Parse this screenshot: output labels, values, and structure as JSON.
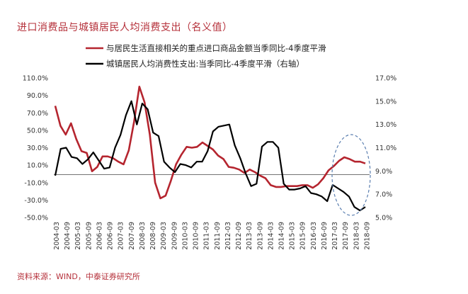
{
  "title": "进口消费品与城镇居民人均消费支出（名义值）",
  "source": "资料来源：WIND，中泰证券研究所",
  "colors": {
    "series1": "#b5252f",
    "series2": "#000000",
    "ellipse": "#5b7fb0",
    "title": "#b5303a"
  },
  "chart_data": {
    "type": "line",
    "legend": [
      "与居民生活直接相关的重点进口商品金额当季同比-4季度平滑",
      "城镇居民人均消费性支出:当季同比-4季度平滑（右轴）"
    ],
    "left_axis": {
      "ticks": [
        "110.0%",
        "90.0%",
        "70.0%",
        "50.0%",
        "30.0%",
        "10.0%",
        "-10.0%",
        "-30.0%",
        "-50.0%"
      ],
      "min": -50,
      "max": 110
    },
    "right_axis": {
      "ticks": [
        "17.0%",
        "15.0%",
        "13.0%",
        "11.0%",
        "9.0%",
        "7.0%",
        "5.0%"
      ],
      "min": 5,
      "max": 17
    },
    "x_labels": [
      "2004-03",
      "2004-09",
      "2005-03",
      "2005-09",
      "2006-03",
      "2006-09",
      "2007-03",
      "2007-09",
      "2008-03",
      "2008-09",
      "2009-03",
      "2009-09",
      "2010-03",
      "2010-09",
      "2011-03",
      "2011-09",
      "2012-03",
      "2012-09",
      "2013-03",
      "2013-09",
      "2014-03",
      "2014-09",
      "2015-03",
      "2015-09",
      "2016-03",
      "2016-09",
      "2017-03",
      "2017-09",
      "2018-03",
      "2018-09"
    ],
    "series": [
      {
        "name": "与居民生活直接相关的重点进口商品金额当季同比-4季度平滑",
        "axis": "left",
        "x_start": 0,
        "values": [
          78,
          55,
          45,
          58,
          40,
          26,
          24,
          3,
          8,
          20,
          20,
          18,
          14,
          11,
          27,
          60,
          100,
          82,
          45,
          -10,
          -28,
          -25,
          -8,
          11,
          22,
          31,
          30,
          31,
          36,
          32,
          28,
          21,
          17,
          8,
          7,
          5,
          1,
          5,
          2,
          -2,
          -5,
          -13,
          -15,
          -15,
          -14,
          -14,
          -14,
          -13,
          -13,
          -16,
          -12,
          -5,
          4,
          9,
          15,
          19,
          17,
          14,
          14,
          12
        ]
      },
      {
        "name": "城镇居民人均消费性支出:当季同比-4季度平滑（右轴）",
        "axis": "right",
        "x_start": 0,
        "values": [
          8.6,
          10.9,
          11.0,
          10.2,
          10.1,
          9.6,
          10.0,
          10.6,
          9.9,
          9.2,
          9.3,
          11.0,
          12.1,
          13.8,
          15.0,
          13.0,
          14.8,
          14.3,
          12.3,
          12.0,
          9.8,
          9.3,
          8.9,
          9.6,
          9.5,
          9.3,
          9.8,
          9.8,
          10.7,
          12.4,
          12.8,
          12.9,
          13.0,
          11.2,
          10.1,
          8.8,
          7.7,
          7.9,
          11.1,
          11.5,
          11.5,
          11.0,
          7.9,
          7.4,
          7.4,
          7.5,
          7.7,
          7.1,
          7.0,
          6.8,
          6.4,
          7.8,
          7.5,
          7.2,
          6.8,
          5.9,
          5.6,
          5.9
        ]
      }
    ]
  }
}
